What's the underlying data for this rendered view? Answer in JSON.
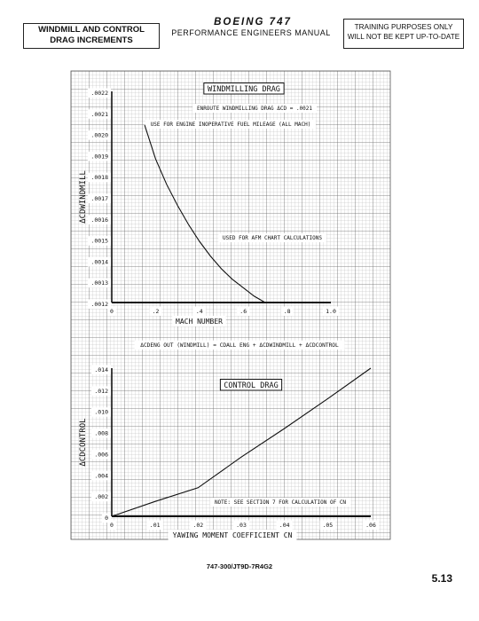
{
  "header": {
    "left_title_line1": "WINDMILL AND CONTROL",
    "left_title_line2": "DRAG INCREMENTS",
    "brand": "BOEING 747",
    "manual_title": "PERFORMANCE ENGINEERS MANUAL",
    "notice_line1": "TRAINING PURPOSES ONLY",
    "notice_line2": "WILL NOT BE KEPT UP-TO-DATE"
  },
  "footer": {
    "code": "747-300/JT9D-7R4G2",
    "page": "5.13"
  },
  "colors": {
    "grid": "#9a9a9a",
    "ink": "#111111"
  },
  "chart_data": [
    {
      "type": "line",
      "title": "WINDMILLING DRAG",
      "annotations": [
        "ENROUTE WINDMILLING DRAG ΔCD = .0021",
        "USE FOR ENGINE INOPERATIVE FUEL MILEAGE (ALL MACH)",
        "USED FOR AFM CHART CALCULATIONS"
      ],
      "xlabel": "MACH NUMBER",
      "ylabel": "ΔCDWINDMILL",
      "xlim": [
        0,
        1.0
      ],
      "ylim": [
        0.0012,
        0.0022
      ],
      "x_ticks": [
        ".2",
        ".4",
        ".6",
        ".8",
        "1.0"
      ],
      "x_tick_values": [
        0.2,
        0.4,
        0.6,
        0.8,
        1.0
      ],
      "y_ticks": [
        ".0012",
        ".0013",
        ".0014",
        ".0015",
        ".0016",
        ".0017",
        ".0018",
        ".0019",
        ".0020",
        ".0021",
        ".0022"
      ],
      "y_tick_values": [
        0.0012,
        0.0013,
        0.0014,
        0.0015,
        0.0016,
        0.0017,
        0.0018,
        0.0019,
        0.002,
        0.0021,
        0.0022
      ],
      "x0_label": "0",
      "series": [
        {
          "x": [
            0.15,
            0.2,
            0.25,
            0.3,
            0.35,
            0.4,
            0.45,
            0.5,
            0.55,
            0.6,
            0.65,
            0.7
          ],
          "values": [
            0.00204,
            0.00188,
            0.00176,
            0.00166,
            0.00157,
            0.00149,
            0.00142,
            0.00136,
            0.00131,
            0.00127,
            0.00123,
            0.0012
          ]
        }
      ]
    },
    {
      "type": "line",
      "formula": "ΔCDENG OUT (WINDMILL) = CDALL ENG + ΔCDWINDMILL + ΔCDCONTROL",
      "title": "CONTROL DRAG",
      "annotations": [
        "NOTE: SEE SECTION 7 FOR CALCULATION OF CN"
      ],
      "xlabel": "YAWING MOMENT COEFFICIENT CN",
      "ylabel": "ΔCDCONTROL",
      "xlim": [
        0,
        0.06
      ],
      "ylim": [
        0,
        0.014
      ],
      "x_ticks": [
        ".01",
        ".02",
        ".03",
        ".04",
        ".05",
        ".06"
      ],
      "x_tick_values": [
        0.01,
        0.02,
        0.03,
        0.04,
        0.05,
        0.06
      ],
      "y_ticks": [
        ".002",
        ".004",
        ".006",
        ".008",
        ".010",
        ".012",
        ".014"
      ],
      "y_tick_values": [
        0.002,
        0.004,
        0.006,
        0.008,
        0.01,
        0.012,
        0.014
      ],
      "x0_label": "0",
      "y0_label": "0",
      "series": [
        {
          "x": [
            0,
            0.01,
            0.02,
            0.03,
            0.04,
            0.05,
            0.06
          ],
          "values": [
            0,
            0.0014,
            0.0027,
            0.0056,
            0.0083,
            0.0111,
            0.014
          ]
        }
      ]
    }
  ]
}
